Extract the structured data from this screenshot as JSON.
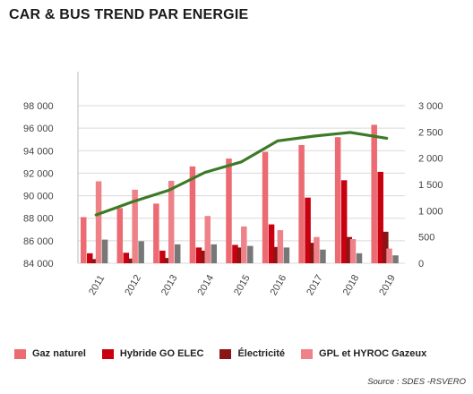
{
  "title": "CAR & BUS TREND PAR ENERGIE",
  "source": "Source : SDES -RSVERO",
  "colors": {
    "gaz_naturel": "#ec6b72",
    "hybride": "#c8000f",
    "electricite": "#8b1414",
    "gpl": "#ef8288",
    "total_line": "#3c7a26",
    "gray_bar": "#777777",
    "grid": "#d9d9d9"
  },
  "chart_data": {
    "type": "bar",
    "title": "CAR & BUS TREND PAR ENERGIE",
    "categories": [
      "2011",
      "2012",
      "2013",
      "2014",
      "2015",
      "2016",
      "2017",
      "2018",
      "2019"
    ],
    "left_axis": {
      "ylim": [
        84000,
        98000
      ],
      "ticks": [
        84000,
        86000,
        88000,
        90000,
        92000,
        94000,
        96000,
        98000
      ],
      "tick_labels": [
        "84 000",
        "86 000",
        "88 000",
        "90 000",
        "92 000",
        "94 000",
        "96 000",
        "98 000"
      ]
    },
    "right_axis": {
      "ylim": [
        0,
        3000
      ],
      "ticks": [
        0,
        500,
        1000,
        1500,
        2000,
        2500,
        3000
      ],
      "tick_labels": [
        "0",
        "500",
        "1 000",
        "1 500",
        "2 000",
        "2 500",
        "3 000"
      ]
    },
    "series": [
      {
        "name": "Gaz naturel",
        "axis": "left",
        "kind": "bar",
        "values": [
          88100,
          88900,
          89300,
          92600,
          93300,
          93900,
          94500,
          95200,
          96300
        ]
      },
      {
        "name": "GPL et HYROC Gazeux",
        "axis": "right",
        "kind": "bar",
        "values": [
          1560,
          1400,
          1570,
          900,
          700,
          630,
          500,
          460,
          280
        ]
      },
      {
        "name": "Hybride GO ELEC",
        "axis": "right",
        "kind": "bar",
        "values": [
          190,
          200,
          240,
          300,
          350,
          740,
          1250,
          1580,
          1740
        ]
      },
      {
        "name": "Électricité",
        "axis": "right",
        "kind": "bar",
        "values": [
          80,
          90,
          100,
          240,
          300,
          310,
          390,
          500,
          600
        ]
      },
      {
        "name": "",
        "axis": "right",
        "kind": "bar",
        "values": [
          450,
          420,
          360,
          360,
          330,
          300,
          260,
          190,
          150
        ]
      },
      {
        "name": "",
        "axis": "right",
        "kind": "line",
        "values": [
          920,
          1170,
          1390,
          1730,
          1930,
          2330,
          2420,
          2490,
          2380
        ]
      }
    ],
    "legend": [
      "Gaz naturel",
      "Hybride GO ELEC",
      "Électricité",
      "GPL et HYROC Gazeux"
    ],
    "legend_position": "bottom",
    "grid": true,
    "xlabel": "",
    "ylabel": ""
  }
}
